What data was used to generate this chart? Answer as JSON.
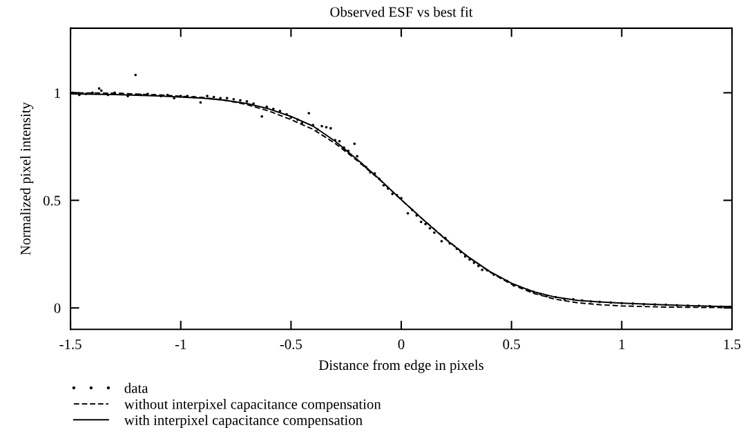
{
  "chart_data": {
    "type": "scatter",
    "title": "Observed ESF vs best fit",
    "xlabel": "Distance from edge in pixels",
    "ylabel": "Normalized pixel intensity",
    "xlim": [
      -1.5,
      1.5
    ],
    "ylim": [
      -0.1,
      1.3
    ],
    "xticks": [
      -1.5,
      -1,
      -0.5,
      0,
      0.5,
      1,
      1.5
    ],
    "yticks": [
      0,
      0.5,
      1
    ],
    "grid": false,
    "legend": "bottom left",
    "series": [
      {
        "name": "data",
        "type": "scatter",
        "marker": "circle",
        "color": "#000000",
        "x": [
          -1.49,
          -1.46,
          -1.43,
          -1.4,
          -1.37,
          -1.36,
          -1.33,
          -1.3,
          -1.27,
          -1.24,
          -1.205,
          -1.18,
          -1.15,
          -1.12,
          -1.09,
          -1.06,
          -1.03,
          -1.0,
          -0.97,
          -0.94,
          -0.91,
          -0.88,
          -0.85,
          -0.82,
          -0.79,
          -0.76,
          -0.73,
          -0.7,
          -0.67,
          -0.632,
          -0.61,
          -0.58,
          -0.55,
          -0.52,
          -0.5,
          -0.47,
          -0.45,
          -0.419,
          -0.4,
          -0.38,
          -0.36,
          -0.34,
          -0.32,
          -0.3,
          -0.28,
          -0.26,
          -0.24,
          -0.212,
          -0.2,
          -0.18,
          -0.16,
          -0.14,
          -0.12,
          -0.1,
          -0.08,
          -0.06,
          -0.04,
          -0.02,
          0.0,
          0.03,
          0.05,
          0.07,
          0.09,
          0.11,
          0.13,
          0.15,
          0.183,
          0.2,
          0.22,
          0.252,
          0.27,
          0.29,
          0.31,
          0.33,
          0.35,
          0.367,
          0.39,
          0.42,
          0.45,
          0.48,
          0.51,
          0.54,
          0.57,
          0.6,
          0.63,
          0.66,
          0.7,
          0.74,
          0.78,
          0.82,
          0.86,
          0.9,
          0.95,
          1.0,
          1.05,
          1.1,
          1.15,
          1.2,
          1.25,
          1.3,
          1.35,
          1.4,
          1.45,
          1.49
        ],
        "values": [
          1.0,
          0.99,
          0.995,
          1.0,
          1.02,
          1.01,
          0.99,
          1.0,
          0.995,
          0.985,
          1.083,
          0.99,
          0.995,
          0.99,
          0.985,
          0.99,
          0.975,
          0.985,
          0.985,
          0.98,
          0.955,
          0.985,
          0.98,
          0.975,
          0.975,
          0.97,
          0.965,
          0.96,
          0.95,
          0.89,
          0.935,
          0.925,
          0.915,
          0.9,
          0.885,
          0.875,
          0.86,
          0.905,
          0.85,
          0.83,
          0.845,
          0.84,
          0.835,
          0.78,
          0.775,
          0.745,
          0.73,
          0.763,
          0.705,
          0.67,
          0.655,
          0.63,
          0.625,
          0.6,
          0.57,
          0.555,
          0.53,
          0.525,
          0.51,
          0.44,
          0.455,
          0.43,
          0.4,
          0.39,
          0.37,
          0.35,
          0.31,
          0.325,
          0.3,
          0.275,
          0.26,
          0.24,
          0.225,
          0.21,
          0.195,
          0.177,
          0.175,
          0.155,
          0.14,
          0.125,
          0.105,
          0.095,
          0.085,
          0.075,
          0.065,
          0.055,
          0.05,
          0.04,
          0.04,
          0.035,
          0.03,
          0.028,
          0.025,
          0.022,
          0.02,
          0.017,
          0.016,
          0.015,
          0.012,
          0.011,
          0.01,
          0.008,
          0.006,
          0.005
        ]
      },
      {
        "name": "without interpixel capacitance compensation",
        "type": "line",
        "line_style": "dashed",
        "color": "#000000",
        "x": [
          -1.5,
          -1.3,
          -1.1,
          -0.9,
          -0.8,
          -0.7,
          -0.6,
          -0.5,
          -0.4,
          -0.3,
          -0.2,
          -0.1,
          0,
          0.1,
          0.2,
          0.3,
          0.4,
          0.5,
          0.6,
          0.7,
          0.8,
          0.9,
          1.0,
          1.2,
          1.4,
          1.5
        ],
        "values": [
          1.0,
          0.998,
          0.99,
          0.978,
          0.965,
          0.945,
          0.915,
          0.875,
          0.83,
          0.765,
          0.685,
          0.598,
          0.503,
          0.41,
          0.322,
          0.24,
          0.168,
          0.11,
          0.068,
          0.04,
          0.024,
          0.015,
          0.009,
          0.004,
          0.002,
          0.001
        ]
      },
      {
        "name": "with interpixel capacitance compensation",
        "type": "line",
        "line_style": "solid",
        "color": "#000000",
        "x": [
          -1.5,
          -1.3,
          -1.1,
          -0.9,
          -0.8,
          -0.7,
          -0.6,
          -0.5,
          -0.4,
          -0.3,
          -0.2,
          -0.1,
          0,
          0.1,
          0.2,
          0.3,
          0.4,
          0.5,
          0.6,
          0.7,
          0.8,
          0.9,
          1.0,
          1.2,
          1.4,
          1.5
        ],
        "values": [
          0.995,
          0.992,
          0.985,
          0.975,
          0.965,
          0.95,
          0.925,
          0.89,
          0.845,
          0.775,
          0.69,
          0.6,
          0.503,
          0.41,
          0.32,
          0.24,
          0.17,
          0.115,
          0.075,
          0.05,
          0.035,
          0.028,
          0.022,
          0.014,
          0.008,
          0.006
        ]
      }
    ]
  }
}
